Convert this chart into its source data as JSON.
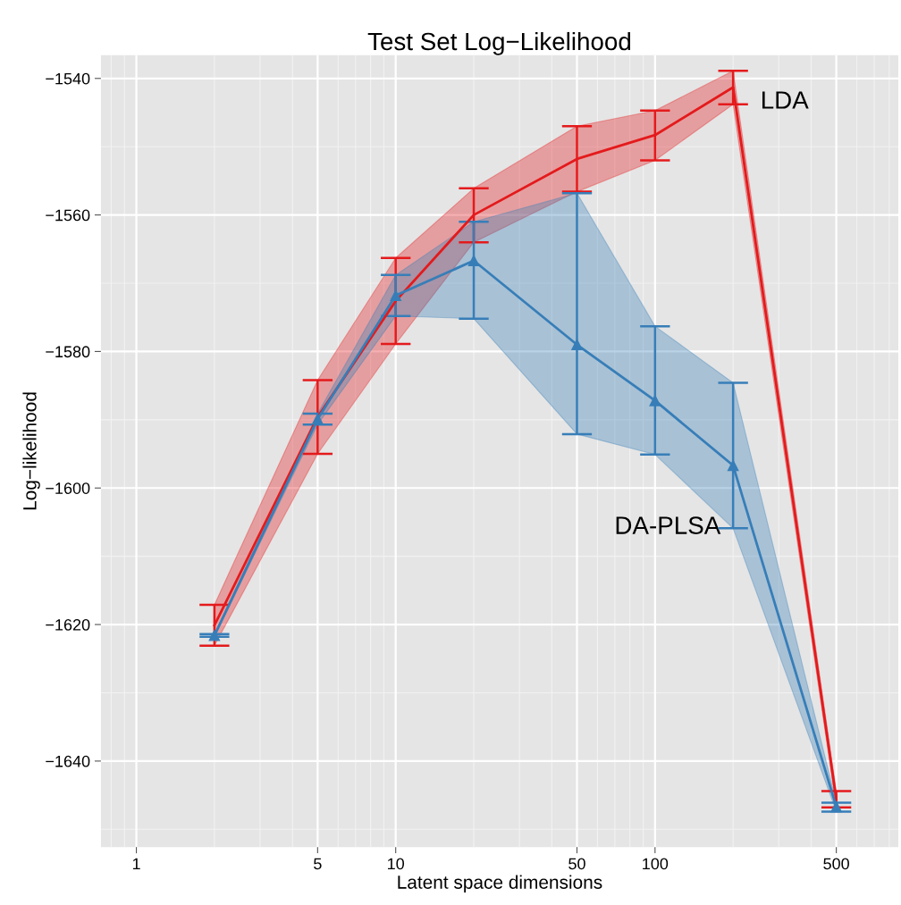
{
  "chart_data": {
    "type": "line",
    "title": "Test Set Log−Likelihood",
    "xlabel": "Latent space dimensions",
    "ylabel": "Log−likelihood",
    "log": "x",
    "grid": true,
    "xlim": [
      0.73,
      867
    ],
    "xticks": [
      1,
      5,
      10,
      50,
      100,
      500
    ],
    "ylim": [
      -1652.6,
      -1536.6
    ],
    "yticks": [
      -1640,
      -1620,
      -1600,
      -1580,
      -1560,
      -1540
    ],
    "x": [
      2,
      5,
      10,
      20,
      50,
      100,
      200,
      500
    ],
    "series": [
      {
        "name": "LDA",
        "color": "#e41a1c",
        "marker": "none",
        "values": [
          -1620.1,
          -1589.6,
          -1572.6,
          -1560.0,
          -1551.8,
          -1548.3,
          -1541.3,
          -1645.6
        ],
        "lower": [
          -1623.1,
          -1595.0,
          -1578.9,
          -1564.0,
          -1556.6,
          -1552.0,
          -1543.8,
          -1646.8
        ],
        "upper": [
          -1617.1,
          -1584.2,
          -1566.3,
          -1556.1,
          -1547.0,
          -1544.7,
          -1538.9,
          -1644.4
        ],
        "errors": [
          [
            -1623.1,
            -1617.1
          ],
          [
            -1595.0,
            -1584.2
          ],
          [
            -1578.9,
            -1566.3
          ],
          [
            -1564.0,
            -1556.1
          ],
          [
            -1556.6,
            -1547.0
          ],
          [
            -1552.0,
            -1544.7
          ],
          [
            -1543.8,
            -1538.9
          ],
          [
            -1646.8,
            -1644.4
          ]
        ]
      },
      {
        "name": "DA-PLSA",
        "color": "#377eb8",
        "marker": "triangle",
        "values": [
          -1621.6,
          -1589.9,
          -1571.8,
          -1566.7,
          -1579.0,
          -1587.2,
          -1596.7,
          -1646.7
        ],
        "lower": [
          -1621.8,
          -1590.7,
          -1574.8,
          -1575.2,
          -1592.1,
          -1595.1,
          -1605.9,
          -1647.4
        ],
        "upper": [
          -1621.4,
          -1589.1,
          -1568.8,
          -1561.0,
          -1556.8,
          -1576.3,
          -1584.6,
          -1646.1
        ],
        "errors": [
          [
            -1621.8,
            -1621.4
          ],
          [
            -1590.7,
            -1589.1
          ],
          [
            -1574.8,
            -1568.8
          ],
          [
            -1575.2,
            -1561.0
          ],
          [
            -1592.1,
            -1556.8
          ],
          [
            -1595.1,
            -1576.3
          ],
          [
            -1605.9,
            -1584.6
          ],
          [
            -1647.4,
            -1646.1
          ]
        ]
      }
    ]
  }
}
